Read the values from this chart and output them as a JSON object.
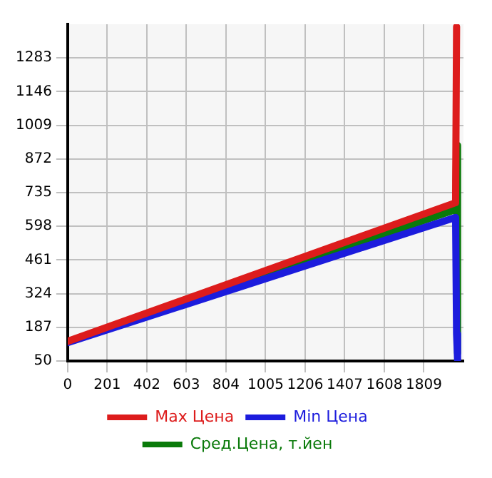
{
  "chart_data": {
    "type": "line",
    "xlim": [
      0,
      2010
    ],
    "xticks": [
      0,
      201,
      402,
      603,
      804,
      1005,
      1206,
      1407,
      1608,
      1809
    ],
    "ylim": [
      50,
      1420
    ],
    "yticks": [
      50,
      187,
      324,
      461,
      598,
      735,
      872,
      1009,
      1146,
      1283
    ],
    "grid": true,
    "legend": "bottom",
    "marker": "none",
    "line_style": "solid",
    "series": [
      {
        "name": "Max Цена",
        "color": "#dd1c1c",
        "x": [
          0,
          1970,
          1975
        ],
        "values": [
          130,
          694,
          1410
        ]
      },
      {
        "name": "Min Цена",
        "color": "#1c1cdd",
        "x": [
          0,
          1970,
          1975,
          1980
        ],
        "values": [
          125,
          634,
          160,
          55
        ]
      },
      {
        "name": "Сред.Цена, т.йен",
        "color": "#0a7a0a",
        "x": [
          0,
          1970,
          1975,
          1980
        ],
        "values": [
          128,
          666,
          927,
          82
        ]
      }
    ]
  }
}
